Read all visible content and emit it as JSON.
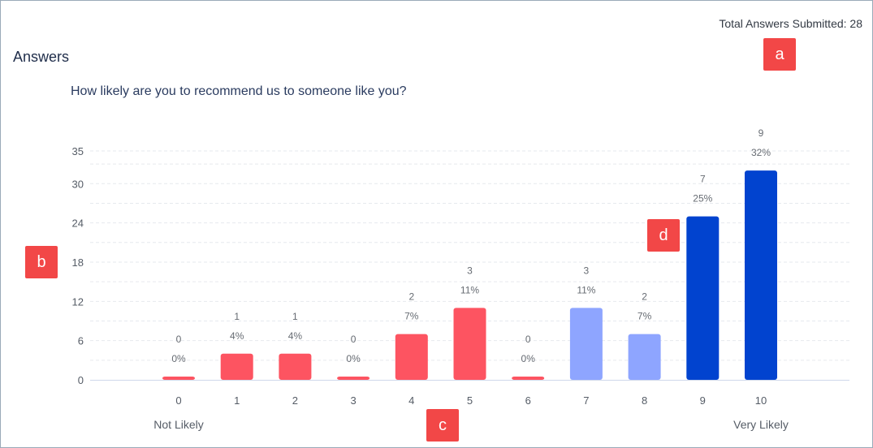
{
  "header": {
    "total_label": "Total Answers Submitted: 28",
    "section_title": "Answers"
  },
  "question": "How likely are you to recommend us to someone like you?",
  "badges": {
    "a": "a",
    "b": "b",
    "c": "c",
    "d": "d"
  },
  "chart_data": {
    "type": "bar",
    "categories": [
      "0",
      "1",
      "2",
      "3",
      "4",
      "5",
      "6",
      "7",
      "8",
      "9",
      "10"
    ],
    "values": [
      0,
      4,
      4,
      0,
      7,
      11,
      0,
      11,
      7,
      25,
      32
    ],
    "counts": [
      "0",
      "1",
      "1",
      "0",
      "2",
      "3",
      "0",
      "3",
      "2",
      "7",
      "9"
    ],
    "percent_labels": [
      "0%",
      "4%",
      "4%",
      "0%",
      "7%",
      "11%",
      "0%",
      "11%",
      "7%",
      "25%",
      "32%"
    ],
    "y_ticks": [
      0,
      6,
      12,
      18,
      24,
      30,
      35
    ],
    "ylim": [
      0,
      35
    ],
    "grid": true,
    "end_labels": {
      "left": "Not Likely",
      "right": "Very Likely"
    },
    "colors": {
      "detractor": "#fd5461",
      "passive": "#8ea5ff",
      "promoter": "#0143cf",
      "grid": "#e6e9ee",
      "axis": "#cfd8ea"
    }
  }
}
